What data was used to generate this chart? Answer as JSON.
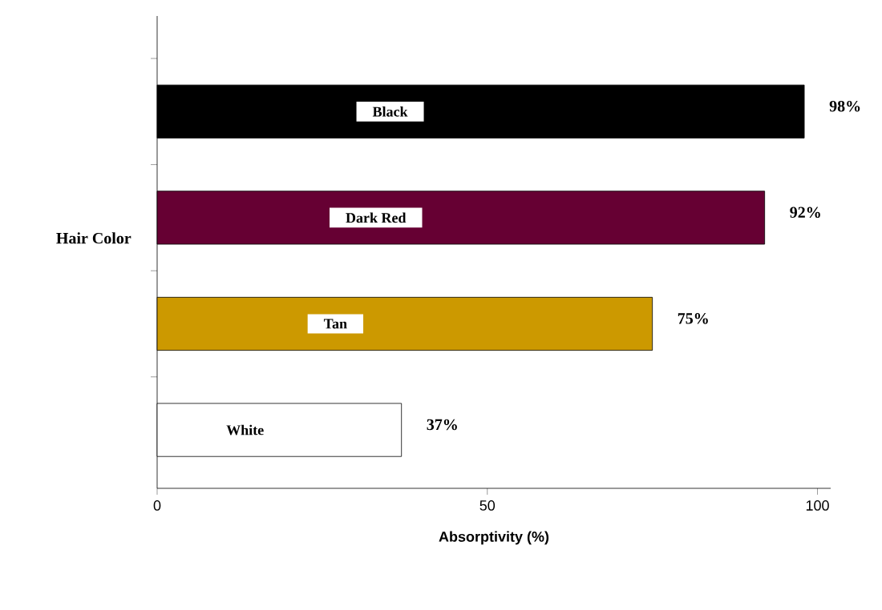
{
  "chart_data": {
    "type": "bar",
    "orientation": "horizontal",
    "xlabel": "Absorptivity (%)",
    "ylabel": "Hair Color",
    "categories": [
      "Black",
      "Dark Red",
      "Tan",
      "White"
    ],
    "values": [
      98,
      92,
      75,
      37
    ],
    "colors": [
      "#000000",
      "#660033",
      "#cc9900",
      "#ffffff"
    ],
    "value_labels": [
      "98%",
      "92%",
      "75%",
      "37%"
    ],
    "xlim": [
      0,
      102
    ],
    "xticks": [
      0,
      50,
      100
    ],
    "grid": false
  }
}
